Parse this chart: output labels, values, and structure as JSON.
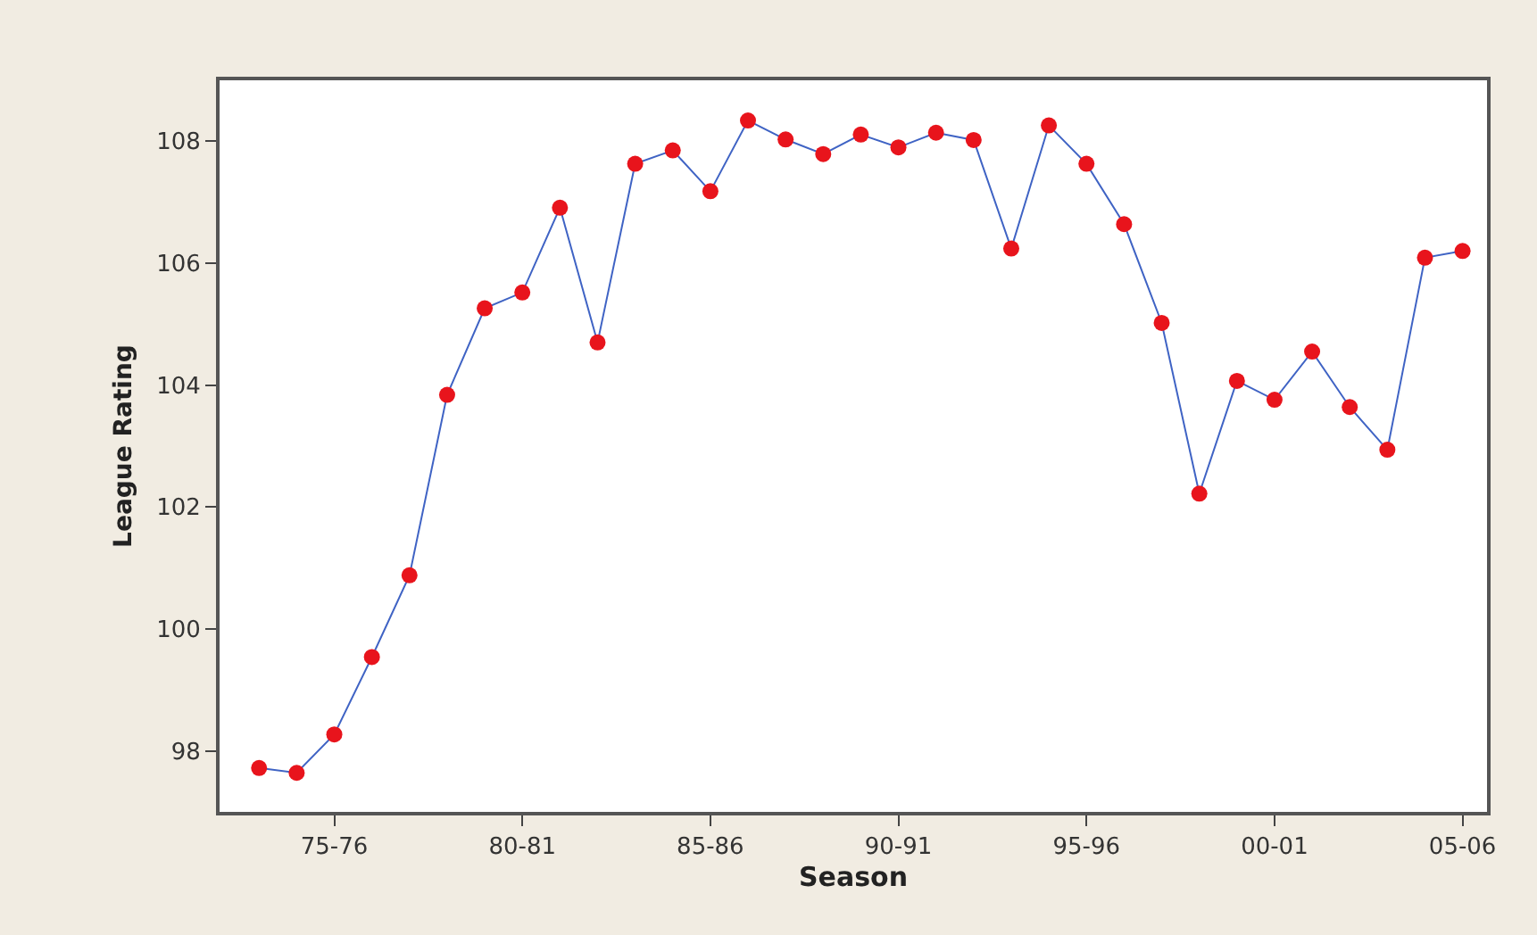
{
  "chart_data": {
    "type": "line",
    "xlabel": "Season",
    "ylabel": "League Rating",
    "categories": [
      null,
      null,
      "75-76",
      null,
      null,
      null,
      null,
      "80-81",
      null,
      null,
      null,
      null,
      "85-86",
      null,
      null,
      null,
      null,
      "90-91",
      null,
      null,
      null,
      null,
      "95-96",
      null,
      null,
      null,
      null,
      "00-01",
      null,
      null,
      null,
      null,
      "05-06"
    ],
    "series": [
      {
        "color": "#3f63c4",
        "colors": [
          "#e8141c",
          "#e8141c",
          "#e8141c",
          "#e8141c",
          "#e8141c",
          "#e8141c",
          "#e8141c",
          "#e8141c",
          "#e8141c",
          "#e8141c",
          "#e8141c",
          "#e8141c",
          "#e8141c",
          "#e8141c",
          "#e8141c",
          "#e8141c",
          "#e8141c",
          "#e8141c",
          "#e8141c",
          "#e8141c",
          "#e8141c",
          "#e8141c",
          "#e8141c",
          "#e8141c",
          "#e8141c",
          "#e8141c",
          "#e8141c",
          "#e8141c",
          "#e8141c",
          "#e8141c",
          "#e8141c",
          "#e8141c",
          "#e8141c"
        ],
        "values": [
          97.72,
          97.64,
          98.27,
          99.54,
          100.88,
          103.84,
          105.26,
          105.52,
          106.91,
          104.7,
          107.63,
          107.85,
          107.18,
          108.34,
          108.03,
          107.79,
          108.11,
          107.9,
          108.14,
          108.02,
          106.24,
          108.26,
          107.63,
          106.64,
          105.02,
          102.22,
          104.07,
          103.76,
          104.55,
          103.64,
          102.94,
          106.09,
          106.2
        ]
      }
    ],
    "ylim": [
      97,
      109
    ],
    "yticks": [
      98,
      100,
      102,
      104,
      106,
      108
    ],
    "marker": "circle",
    "line_style": "solid"
  }
}
